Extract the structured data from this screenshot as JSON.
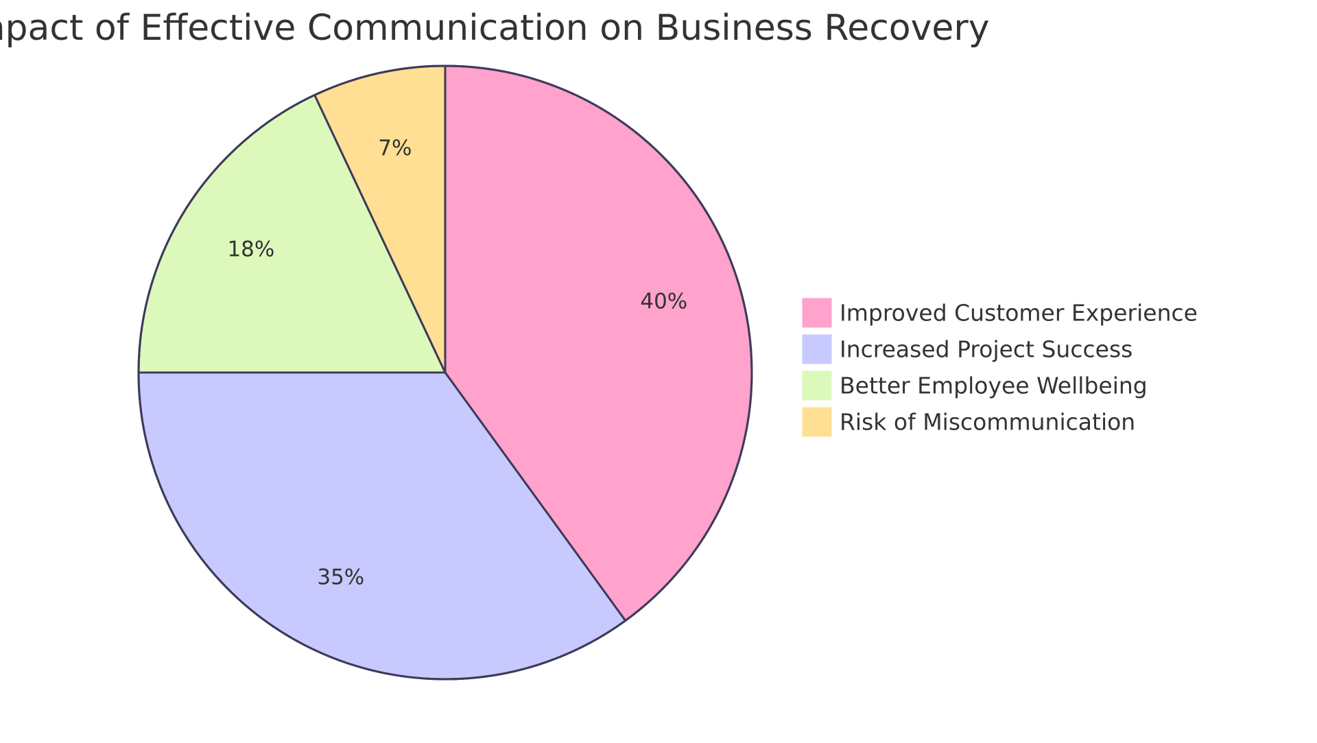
{
  "chart_data": {
    "type": "pie",
    "title": "Impact of Effective Communication on Business Recovery",
    "categories": [
      "Improved Customer Experience",
      "Increased Project Success",
      "Better Employee Wellbeing",
      "Risk of Miscommunication"
    ],
    "values": [
      40,
      35,
      18,
      7
    ],
    "value_labels": [
      "40%",
      "35%",
      "18%",
      "7%"
    ],
    "colors": [
      "#ffa2cc",
      "#c8caff",
      "#dcf9bb",
      "#ffdf94"
    ],
    "stroke_color": "#3e3a5a",
    "legend_position": "right",
    "start_angle": "12 o'clock",
    "direction": "clockwise"
  }
}
